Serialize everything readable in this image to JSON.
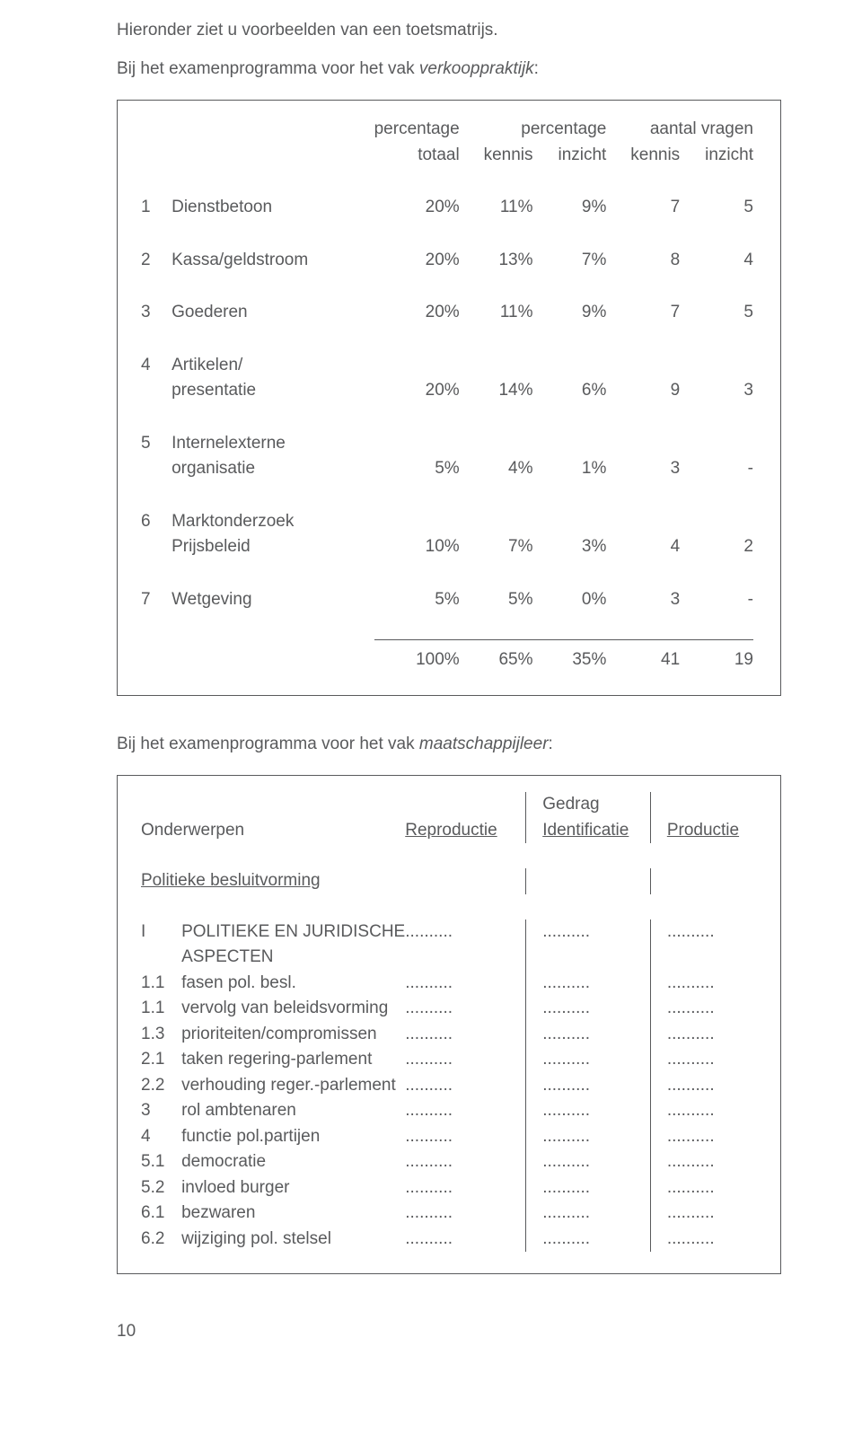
{
  "intro1": "Hieronder ziet u voorbeelden van een toetsmatrijs.",
  "intro2_pre": "Bij het examenprogramma voor het vak ",
  "intro2_italic": "verkooppraktijk",
  "intro2_post": ":",
  "t1": {
    "h_pct": "percentage",
    "h_aantal": "aantal vragen",
    "h_totaal": "totaal",
    "h_kennis": "kennis",
    "h_inzicht": "inzicht",
    "rows": [
      {
        "n": "1",
        "label": "Dienstbetoon",
        "c1": "20%",
        "c2": "11%",
        "c3": "9%",
        "c4": "7",
        "c5": "5"
      },
      {
        "n": "2",
        "label": "Kassa/geldstroom",
        "c1": "20%",
        "c2": "13%",
        "c3": "7%",
        "c4": "8",
        "c5": "4"
      },
      {
        "n": "3",
        "label": "Goederen",
        "c1": "20%",
        "c2": "11%",
        "c3": "9%",
        "c4": "7",
        "c5": "5"
      },
      {
        "n": "4",
        "label": "Artikelen/",
        "sub": "presentatie",
        "c1": "20%",
        "c2": "14%",
        "c3": "6%",
        "c4": "9",
        "c5": "3"
      },
      {
        "n": "5",
        "label": "Internelexterne",
        "sub": "organisatie",
        "c1": "5%",
        "c2": "4%",
        "c3": "1%",
        "c4": "3",
        "c5": "-"
      },
      {
        "n": "6",
        "label": "Marktonderzoek",
        "sub": "Prijsbeleid",
        "c1": "10%",
        "c2": "7%",
        "c3": "3%",
        "c4": "4",
        "c5": "2"
      },
      {
        "n": "7",
        "label": "Wetgeving",
        "c1": "5%",
        "c2": "5%",
        "c3": "0%",
        "c4": "3",
        "c5": "-"
      }
    ],
    "total": {
      "c1": "100%",
      "c2": "65%",
      "c3": "35%",
      "c4": "41",
      "c5": "19"
    }
  },
  "intro3_pre": "Bij het examenprogramma voor het vak ",
  "intro3_italic": "maatschappijleer",
  "intro3_post": ":",
  "t2": {
    "onderwerpen": "Onderwerpen",
    "gedrag": "Gedrag",
    "repro": "Reproductie",
    "ident": "Identificatie",
    "prod": "Productie",
    "section": "Politieke besluitvorming",
    "items": [
      {
        "n": "I",
        "label": "POLITIEKE EN JURIDISCHE",
        "sub": "ASPECTEN"
      },
      {
        "n": "1.1",
        "label": "fasen pol. besl."
      },
      {
        "n": "1.1",
        "label": "vervolg van beleidsvorming"
      },
      {
        "n": "1.3",
        "label": "prioriteiten/compromissen"
      },
      {
        "n": "2.1",
        "label": "taken regering-parlement"
      },
      {
        "n": "2.2",
        "label": "verhouding reger.-parlement"
      },
      {
        "n": "3",
        "label": "rol ambtenaren"
      },
      {
        "n": "4",
        "label": "functie pol.partijen"
      },
      {
        "n": "5.1",
        "label": "democratie"
      },
      {
        "n": "5.2",
        "label": "invloed burger"
      },
      {
        "n": "6.1",
        "label": "bezwaren"
      },
      {
        "n": "6.2",
        "label": "wijziging pol. stelsel"
      }
    ],
    "dots": ".........."
  },
  "page_number": "10"
}
